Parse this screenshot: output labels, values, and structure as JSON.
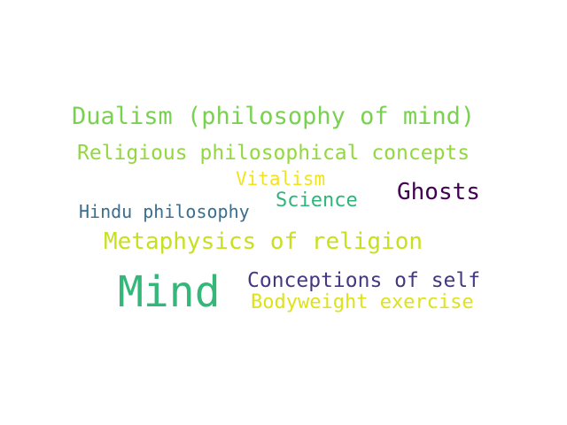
{
  "words": [
    {
      "text": "Dualism (philosophy of mind)",
      "color": "#7ad151"
    },
    {
      "text": "Religious philosophical concepts",
      "color": "#93d741"
    },
    {
      "text": "Vitalism",
      "color": "#f0e51c"
    },
    {
      "text": "Ghosts",
      "color": "#440154"
    },
    {
      "text": "Science",
      "color": "#2fb47c"
    },
    {
      "text": "Hindu philosophy",
      "color": "#3b6d8c"
    },
    {
      "text": "Metaphysics of religion",
      "color": "#c8e020"
    },
    {
      "text": "Mind",
      "color": "#35b779"
    },
    {
      "text": "Conceptions of self",
      "color": "#453781"
    },
    {
      "text": "Bodyweight exercise",
      "color": "#dde318"
    }
  ]
}
